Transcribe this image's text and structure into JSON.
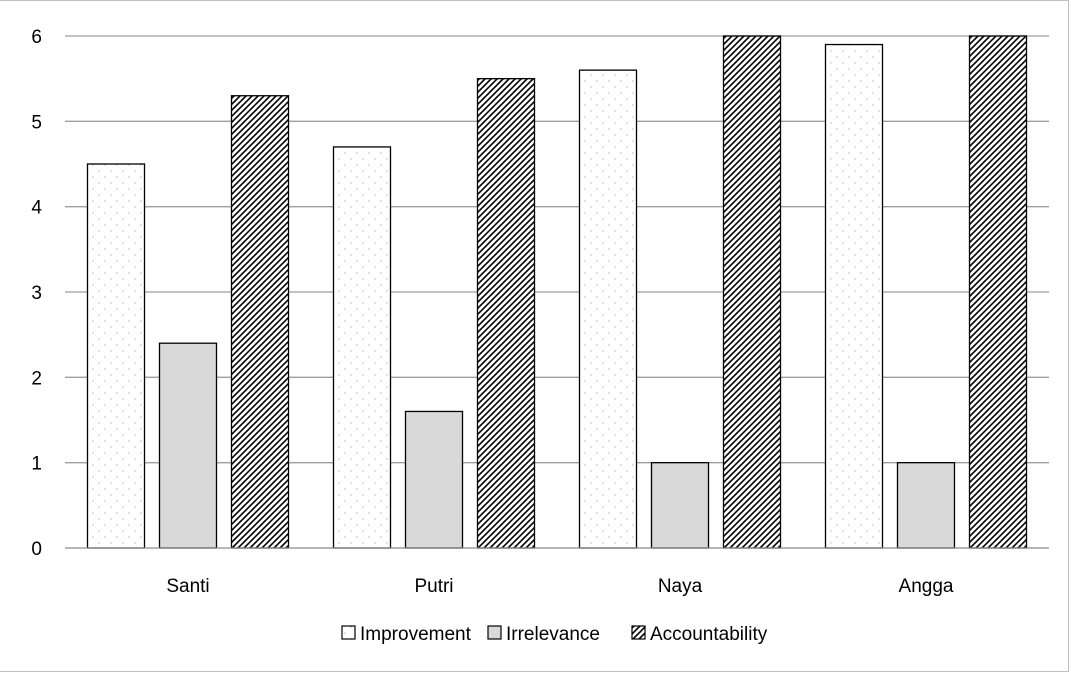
{
  "chart_data": {
    "type": "bar",
    "categories": [
      "Santi",
      "Putri",
      "Naya",
      "Angga"
    ],
    "series": [
      {
        "name": "Improvement",
        "values": [
          4.5,
          4.7,
          5.6,
          5.9
        ],
        "pattern": "dots",
        "color": "#ffffff"
      },
      {
        "name": "Irrelevance",
        "values": [
          2.4,
          1.6,
          1.0,
          1.0
        ],
        "pattern": "solid",
        "color": "#d9d9d9"
      },
      {
        "name": "Accountability",
        "values": [
          5.3,
          5.5,
          6.0,
          6.0
        ],
        "pattern": "diagonal-hatch",
        "color": "#ffffff"
      }
    ],
    "ylim": [
      0,
      6
    ],
    "yticks": [
      "0",
      "1",
      "2",
      "3",
      "4",
      "5",
      "6"
    ],
    "grid": true,
    "legend_position": "bottom",
    "title": "",
    "xlabel": "",
    "ylabel": ""
  },
  "colors": {
    "gridline": "#9e9e9e",
    "bar_stroke": "#000000",
    "irrelevance_fill": "#d9d9d9",
    "frame": "#bfbfbf"
  }
}
